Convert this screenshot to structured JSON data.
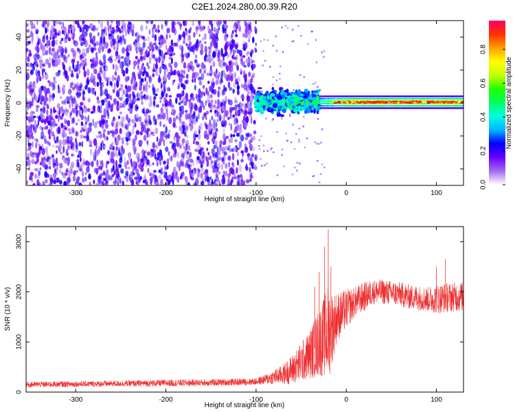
{
  "figure": {
    "title": "C2E1.2024.280.00.39.R20"
  },
  "chart_data": [
    {
      "type": "heatmap",
      "title": "C2E1.2024.280.00.39.R20",
      "xlabel": "Height of straight line (km)",
      "ylabel": "Frequency (Hz)",
      "xlim": [
        -355,
        130
      ],
      "ylim": [
        -50,
        50
      ],
      "x_ticks": [
        -300,
        -200,
        -100,
        0,
        100
      ],
      "y_ticks": [
        -40,
        -20,
        0,
        20,
        40
      ],
      "colorbar": {
        "label": "Normalized spectral amplitude",
        "range": [
          0,
          0.97
        ],
        "ticks": [
          0,
          0.2,
          0.4,
          0.6,
          0.8
        ],
        "colors": [
          "#ffffff",
          "#a06cf0",
          "#6a00ff",
          "#0000ff",
          "#00b4ff",
          "#00ffe0",
          "#00ff60",
          "#20ff00",
          "#c8ff00",
          "#ffff00",
          "#ffa000",
          "#ff3000",
          "#ff0060"
        ]
      },
      "regions": [
        {
          "name": "noise",
          "x_range": [
            -355,
            -100
          ],
          "freq_range": [
            -50,
            50
          ],
          "amplitude_max": 0.15
        },
        {
          "name": "transition",
          "x_range": [
            -100,
            -30
          ],
          "freq_range": [
            -12,
            15
          ],
          "amplitude_max": 0.5
        },
        {
          "name": "signal",
          "x_range": [
            -30,
            130
          ],
          "freq_center": 0.5,
          "freq_halfwidth": 2,
          "amplitude_max": 0.95
        }
      ]
    },
    {
      "type": "line",
      "xlabel": "Height of straight line (km)",
      "ylabel": "SNR (10 * v/v)",
      "xlim": [
        -355,
        130
      ],
      "ylim": [
        0,
        3300
      ],
      "x_ticks": [
        -300,
        -200,
        -100,
        0,
        100
      ],
      "y_ticks": [
        0,
        1000,
        2000,
        3000
      ],
      "color": "#ee3030",
      "series": [
        {
          "x": [
            -355,
            -300,
            -250,
            -200,
            -150,
            -120,
            -100,
            -90,
            -80,
            -70,
            -60,
            -50,
            -40,
            -30,
            -25,
            -20,
            -15,
            -10,
            0,
            10,
            20,
            30,
            40,
            50,
            60,
            70,
            80,
            90,
            100,
            110,
            120,
            130
          ],
          "y_mean": [
            150,
            160,
            170,
            180,
            190,
            200,
            210,
            250,
            300,
            350,
            450,
            600,
            750,
            1000,
            1100,
            1200,
            1300,
            1500,
            1650,
            1800,
            1900,
            2000,
            2000,
            1980,
            1950,
            1900,
            1880,
            1850,
            1860,
            1880,
            1900,
            1900
          ],
          "spread": [
            60,
            60,
            60,
            70,
            70,
            70,
            70,
            100,
            150,
            200,
            300,
            400,
            500,
            700,
            800,
            1000,
            700,
            500,
            400,
            300,
            300,
            250,
            250,
            250,
            250,
            250,
            250,
            250,
            300,
            300,
            300,
            300
          ],
          "spikes": [
            {
              "x": -20,
              "y": 3250
            },
            {
              "x": -24,
              "y": 2900
            },
            {
              "x": -30,
              "y": 2400
            },
            {
              "x": -17,
              "y": 2500
            },
            {
              "x": -35,
              "y": 2100
            },
            {
              "x": 110,
              "y": 2650
            },
            {
              "x": 100,
              "y": 2500
            }
          ]
        }
      ]
    }
  ]
}
